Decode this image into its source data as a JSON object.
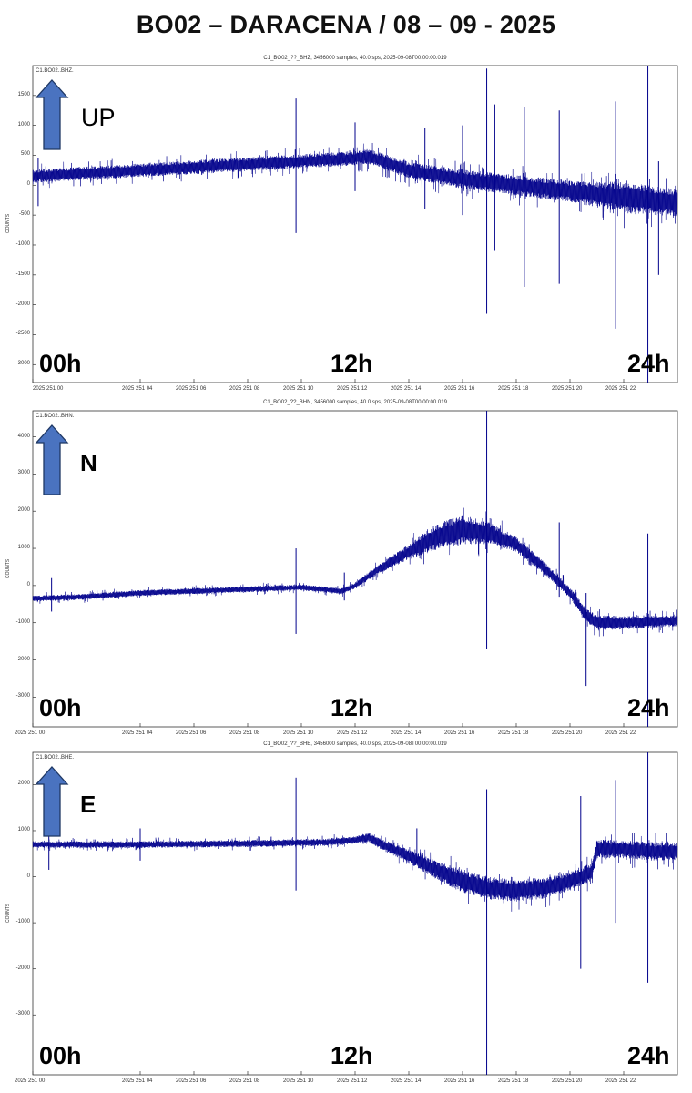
{
  "title": "BO02 – DARACENA / 08 – 09 - 2025",
  "colors": {
    "trace": "#00008b",
    "arrow_fill": "#4a73c0",
    "arrow_stroke": "#1f3864",
    "frame": "#333333"
  },
  "hour_marks": {
    "start": "00h",
    "mid": "12h",
    "end": "24h"
  },
  "x_ticks": [
    "2025 251 00",
    "2025 251 04",
    "2025 251 06",
    "2025 251 08",
    "2025 251 10",
    "2025 251 12",
    "2025 251 14",
    "2025 251 16",
    "2025 251 18",
    "2025 251 20",
    "2025 251 22"
  ],
  "x_tick_hours": [
    0,
    4,
    6,
    8,
    10,
    12,
    14,
    16,
    18,
    20,
    22
  ],
  "panels": [
    {
      "plot_title": "C1_BO02_??_BHZ, 3456000 samples, 40.0 sps, 2025-09-08T00:00:00.019",
      "station_label": "C1.BO02..BHZ.",
      "direction": "UP",
      "direction_icon": "arrow-up-icon",
      "ylabel": "COUNTS",
      "y_ticks": [
        1500,
        1000,
        500,
        0,
        -500,
        -1000,
        -1500,
        -2000,
        -2500,
        -3000
      ],
      "show_first_xtick": false
    },
    {
      "plot_title": "C1_BO02_??_BHN, 3456000 samples, 40.0 sps, 2025-09-08T00:00:00.019",
      "station_label": "C1.BO02..BHN.",
      "direction": "N",
      "direction_icon": "arrow-up-icon",
      "ylabel": "COUNTS",
      "y_ticks": [
        4000,
        3000,
        2000,
        1000,
        0,
        -1000,
        -2000,
        -3000
      ],
      "show_first_xtick": true
    },
    {
      "plot_title": "C1_BO02_??_BHE, 3456000 samples, 40.0 sps, 2025-09-08T00:00:00.019",
      "station_label": "C1.BO02..BHE.",
      "direction": "E",
      "direction_icon": "arrow-up-icon",
      "ylabel": "COUNTS",
      "y_ticks": [
        2000,
        1000,
        0,
        -1000,
        -2000,
        -3000
      ],
      "show_first_xtick": true
    }
  ],
  "chart_data": [
    {
      "type": "line",
      "channel": "BHZ",
      "ylabel": "COUNTS",
      "xlim_hours": [
        0,
        24
      ],
      "ylim": [
        -3300,
        2000
      ],
      "baseline": {
        "x": [
          0,
          4,
          8,
          10,
          12,
          12.5,
          14,
          16,
          18,
          20,
          22,
          24
        ],
        "y": [
          150,
          250,
          350,
          400,
          450,
          480,
          250,
          100,
          0,
          -100,
          -200,
          -300
        ]
      },
      "noise_halfwidth": {
        "x": [
          0,
          12,
          16,
          20,
          22,
          24
        ],
        "y": [
          110,
          120,
          160,
          180,
          260,
          230
        ]
      },
      "spikes": [
        {
          "t": 0.2,
          "min": -350,
          "max": 450
        },
        {
          "t": 9.8,
          "min": -800,
          "max": 1450
        },
        {
          "t": 12.0,
          "min": -100,
          "max": 1050
        },
        {
          "t": 14.6,
          "min": -400,
          "max": 950
        },
        {
          "t": 16.0,
          "min": -500,
          "max": 1000
        },
        {
          "t": 16.9,
          "min": -2150,
          "max": 1950
        },
        {
          "t": 17.2,
          "min": -1100,
          "max": 1350
        },
        {
          "t": 18.3,
          "min": -1700,
          "max": 1300
        },
        {
          "t": 19.6,
          "min": -1650,
          "max": 1250
        },
        {
          "t": 21.7,
          "min": -2400,
          "max": 1400
        },
        {
          "t": 22.9,
          "min": -3300,
          "max": 2000
        },
        {
          "t": 23.3,
          "min": -1500,
          "max": 400
        }
      ]
    },
    {
      "type": "line",
      "channel": "BHN",
      "ylabel": "COUNTS",
      "xlim_hours": [
        0,
        24
      ],
      "ylim": [
        -3800,
        4700
      ],
      "baseline": {
        "x": [
          0,
          2,
          4,
          6,
          8,
          10,
          11.5,
          12,
          13,
          14,
          15,
          16,
          17,
          18,
          19,
          20,
          20.6,
          21,
          22,
          24
        ],
        "y": [
          -350,
          -300,
          -200,
          -150,
          -100,
          -50,
          -150,
          0,
          500,
          900,
          1300,
          1500,
          1400,
          1100,
          500,
          -200,
          -800,
          -1000,
          -1000,
          -950
        ]
      },
      "noise_halfwidth": {
        "x": [
          0,
          12,
          14,
          15,
          16,
          17,
          18,
          20,
          21,
          24
        ],
        "y": [
          80,
          80,
          200,
          350,
          400,
          300,
          200,
          150,
          200,
          150
        ]
      },
      "spikes": [
        {
          "t": 0.7,
          "min": -700,
          "max": 200
        },
        {
          "t": 9.8,
          "min": -1300,
          "max": 1000
        },
        {
          "t": 11.6,
          "min": -400,
          "max": 350
        },
        {
          "t": 16.9,
          "min": -1700,
          "max": 4700
        },
        {
          "t": 19.6,
          "min": -300,
          "max": 1700
        },
        {
          "t": 20.6,
          "min": -2700,
          "max": -200
        },
        {
          "t": 22.9,
          "min": -3800,
          "max": 1400
        }
      ]
    },
    {
      "type": "line",
      "channel": "BHE",
      "ylabel": "COUNTS",
      "xlim_hours": [
        0,
        24
      ],
      "ylim": [
        -4300,
        2700
      ],
      "baseline": {
        "x": [
          0,
          4,
          8,
          11,
          12,
          12.5,
          13,
          14,
          15,
          16,
          17,
          18,
          19,
          20,
          20.8,
          21,
          22,
          23,
          24
        ],
        "y": [
          700,
          700,
          720,
          750,
          800,
          850,
          700,
          450,
          150,
          -100,
          -250,
          -300,
          -250,
          -100,
          100,
          600,
          600,
          550,
          550
        ]
      },
      "noise_halfwidth": {
        "x": [
          0,
          12,
          14,
          16,
          18,
          20,
          21,
          24
        ],
        "y": [
          70,
          80,
          150,
          250,
          250,
          200,
          200,
          200
        ]
      },
      "spikes": [
        {
          "t": 0.6,
          "min": 150,
          "max": 1050
        },
        {
          "t": 4.0,
          "min": 350,
          "max": 1050
        },
        {
          "t": 9.8,
          "min": -300,
          "max": 2150
        },
        {
          "t": 14.3,
          "min": 300,
          "max": 1050
        },
        {
          "t": 16.9,
          "min": -4300,
          "max": 1900
        },
        {
          "t": 20.4,
          "min": -2000,
          "max": 1750
        },
        {
          "t": 21.7,
          "min": -1000,
          "max": 2100
        },
        {
          "t": 22.9,
          "min": -2300,
          "max": 2700
        }
      ]
    }
  ]
}
